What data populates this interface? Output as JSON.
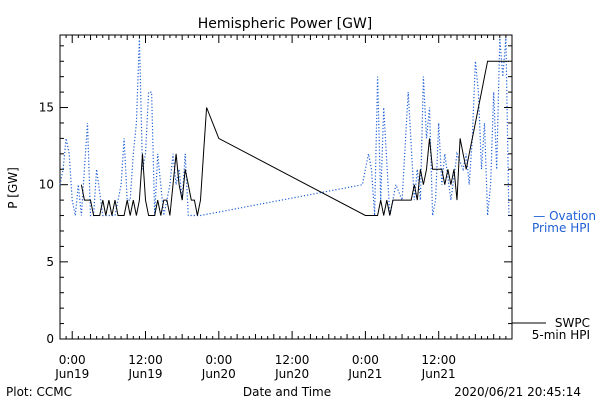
{
  "chart_data": {
    "type": "line",
    "title": "Hemispheric Power [GW]",
    "ylabel": "P [GW]",
    "xlabel": "Date and Time",
    "ylim": [
      0,
      19.7
    ],
    "xlim": [
      "2020-06-18T22:00",
      "2020-06-22T00:00"
    ],
    "yticks": [
      0,
      5,
      10,
      15
    ],
    "xticks": [
      {
        "x": "2020-06-19T00:00",
        "time": "0:00",
        "date": "Jun19"
      },
      {
        "x": "2020-06-19T12:00",
        "time": "12:00",
        "date": "Jun19"
      },
      {
        "x": "2020-06-20T00:00",
        "time": "0:00",
        "date": "Jun20"
      },
      {
        "x": "2020-06-20T12:00",
        "time": "12:00",
        "date": "Jun20"
      },
      {
        "x": "2020-06-21T00:00",
        "time": "0:00",
        "date": "Jun21"
      },
      {
        "x": "2020-06-21T12:00",
        "time": "12:00",
        "date": "Jun21"
      }
    ],
    "series": [
      {
        "name": "SWPC 5-min HPI",
        "legend_lines": [
          "SWPC",
          "5-min HPI"
        ],
        "color": "#000000",
        "style": "solid",
        "x": [
          "2020-06-19T01:30",
          "2020-06-19T02:00",
          "2020-06-19T02:30",
          "2020-06-19T03:00",
          "2020-06-19T03:30",
          "2020-06-19T04:00",
          "2020-06-19T04:30",
          "2020-06-19T05:00",
          "2020-06-19T05:30",
          "2020-06-19T06:00",
          "2020-06-19T06:30",
          "2020-06-19T07:00",
          "2020-06-19T07:30",
          "2020-06-19T08:00",
          "2020-06-19T08:30",
          "2020-06-19T09:00",
          "2020-06-19T09:30",
          "2020-06-19T10:00",
          "2020-06-19T10:30",
          "2020-06-19T11:00",
          "2020-06-19T11:30",
          "2020-06-19T12:00",
          "2020-06-19T12:30",
          "2020-06-19T13:00",
          "2020-06-19T13:30",
          "2020-06-19T14:00",
          "2020-06-19T14:30",
          "2020-06-19T15:00",
          "2020-06-19T15:30",
          "2020-06-19T16:00",
          "2020-06-19T16:30",
          "2020-06-19T17:00",
          "2020-06-19T17:30",
          "2020-06-19T18:00",
          "2020-06-19T18:30",
          "2020-06-19T19:00",
          "2020-06-19T19:30",
          "2020-06-19T20:00",
          "2020-06-19T20:30",
          "2020-06-19T21:00",
          "2020-06-19T21:30",
          "2020-06-19T22:00",
          "2020-06-20T00:00",
          "2020-06-21T00:00",
          "2020-06-21T01:00",
          "2020-06-21T02:00",
          "2020-06-21T02:30",
          "2020-06-21T03:00",
          "2020-06-21T03:30",
          "2020-06-21T04:00",
          "2020-06-21T04:30",
          "2020-06-21T05:00",
          "2020-06-21T05:30",
          "2020-06-21T06:00",
          "2020-06-21T06:30",
          "2020-06-21T07:00",
          "2020-06-21T07:30",
          "2020-06-21T08:00",
          "2020-06-21T08:30",
          "2020-06-21T09:00",
          "2020-06-21T09:30",
          "2020-06-21T10:00",
          "2020-06-21T10:30",
          "2020-06-21T11:00",
          "2020-06-21T11:30",
          "2020-06-21T12:00",
          "2020-06-21T12:30",
          "2020-06-21T13:00",
          "2020-06-21T13:30",
          "2020-06-21T14:00",
          "2020-06-21T14:30",
          "2020-06-21T15:00",
          "2020-06-21T15:30",
          "2020-06-21T16:00",
          "2020-06-21T16:30",
          "2020-06-21T17:00",
          "2020-06-21T17:30",
          "2020-06-21T18:00",
          "2020-06-21T18:30",
          "2020-06-21T19:00",
          "2020-06-21T19:30",
          "2020-06-21T20:00",
          "2020-06-21T20:30",
          "2020-06-21T21:00",
          "2020-06-21T21:30",
          "2020-06-21T22:00",
          "2020-06-21T22:30",
          "2020-06-21T23:00",
          "2020-06-21T23:30"
        ],
        "y": [
          10,
          9,
          9,
          9,
          8,
          8,
          8,
          9,
          8,
          9,
          8,
          9,
          8,
          8,
          8,
          9,
          8,
          9,
          8,
          9,
          12,
          9,
          8,
          8,
          8,
          9,
          8,
          9,
          9,
          8,
          10,
          12,
          10,
          9,
          11,
          10,
          9,
          9,
          8,
          9,
          12,
          15,
          13,
          8,
          8,
          8,
          9,
          8,
          9,
          8,
          9,
          9,
          9,
          9,
          9,
          9,
          9,
          10,
          9,
          11,
          10,
          11,
          13,
          11,
          11,
          11,
          11,
          10,
          11,
          10,
          11,
          9,
          13,
          12,
          11,
          12,
          13,
          14,
          15,
          16,
          17,
          18,
          18,
          18,
          18,
          18,
          18,
          18,
          18
        ]
      },
      {
        "name": "Ovation Prime HPI",
        "legend_lines": [
          "— Ovation",
          "Prime HPI"
        ],
        "color": "#1f5fd6",
        "style": "dotted",
        "x": [
          "2020-06-18T22:00",
          "2020-06-18T22:30",
          "2020-06-18T23:00",
          "2020-06-18T23:30",
          "2020-06-19T00:00",
          "2020-06-19T00:30",
          "2020-06-19T01:00",
          "2020-06-19T01:30",
          "2020-06-19T02:00",
          "2020-06-19T02:30",
          "2020-06-19T03:00",
          "2020-06-19T03:30",
          "2020-06-19T04:00",
          "2020-06-19T05:00",
          "2020-06-19T06:00",
          "2020-06-19T07:00",
          "2020-06-19T08:00",
          "2020-06-19T08:30",
          "2020-06-19T09:00",
          "2020-06-19T09:30",
          "2020-06-19T10:00",
          "2020-06-19T10:30",
          "2020-06-19T11:00",
          "2020-06-19T11:30",
          "2020-06-19T12:00",
          "2020-06-19T12:30",
          "2020-06-19T13:00",
          "2020-06-19T13:30",
          "2020-06-19T14:00",
          "2020-06-19T15:00",
          "2020-06-19T16:00",
          "2020-06-19T16:30",
          "2020-06-19T17:00",
          "2020-06-19T17:30",
          "2020-06-19T18:00",
          "2020-06-19T18:30",
          "2020-06-19T19:00",
          "2020-06-19T19:30",
          "2020-06-19T20:00",
          "2020-06-19T20:30",
          "2020-06-19T21:00",
          "2020-06-20T23:30",
          "2020-06-21T00:00",
          "2020-06-21T00:30",
          "2020-06-21T01:00",
          "2020-06-21T01:30",
          "2020-06-21T02:00",
          "2020-06-21T02:30",
          "2020-06-21T03:00",
          "2020-06-21T04:00",
          "2020-06-21T05:00",
          "2020-06-21T06:00",
          "2020-06-21T07:00",
          "2020-06-21T08:00",
          "2020-06-21T08:30",
          "2020-06-21T09:00",
          "2020-06-21T09:30",
          "2020-06-21T10:00",
          "2020-06-21T10:30",
          "2020-06-21T11:00",
          "2020-06-21T11:30",
          "2020-06-21T12:00",
          "2020-06-21T12:30",
          "2020-06-21T13:00",
          "2020-06-21T14:00",
          "2020-06-21T15:00",
          "2020-06-21T16:00",
          "2020-06-21T16:30",
          "2020-06-21T17:00",
          "2020-06-21T17:30",
          "2020-06-21T18:00",
          "2020-06-21T18:30",
          "2020-06-21T19:00",
          "2020-06-21T19:30",
          "2020-06-21T20:00",
          "2020-06-21T20:30",
          "2020-06-21T21:00",
          "2020-06-21T21:30",
          "2020-06-21T22:00",
          "2020-06-21T22:30",
          "2020-06-21T23:00",
          "2020-06-21T23:30"
        ],
        "y": [
          10,
          11,
          13,
          12,
          9,
          8,
          10,
          8,
          11,
          14,
          8,
          8,
          11,
          8,
          8,
          8,
          10,
          13,
          9,
          9,
          12,
          14,
          19.5,
          11,
          12,
          16,
          16,
          8,
          12,
          8,
          10,
          12,
          10,
          11,
          9,
          12,
          8,
          8,
          8,
          8,
          8,
          10,
          11,
          12,
          11,
          8,
          17,
          9,
          15,
          8,
          10,
          9,
          16,
          9,
          11,
          9,
          17,
          13,
          15,
          8,
          9,
          14,
          10,
          12,
          9,
          12,
          11,
          12,
          10,
          13,
          18,
          16,
          11,
          14,
          8,
          10,
          16,
          11,
          19.5,
          17,
          19.5,
          8
        ]
      }
    ]
  },
  "footer": {
    "left": "Plot: CCMC",
    "center": "Date and Time",
    "right": "2020/06/21 20:45:14"
  }
}
